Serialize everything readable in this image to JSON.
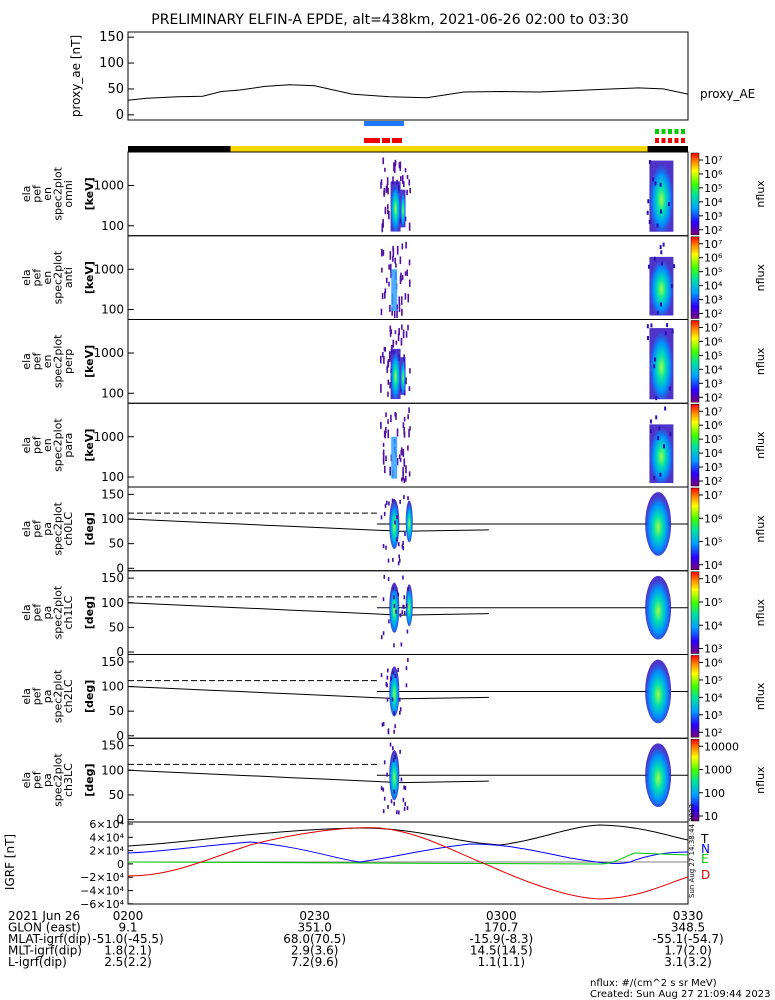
{
  "title": "PRELIMINARY ELFIN-A EPDE, alt=438km, 2021-06-26 02:00 to 03:30",
  "colors": {
    "black": "#000000",
    "bar_black": "#000000",
    "bar_yellow": "#ffd700",
    "blue": "#1e78ff",
    "red": "#ee0000",
    "green": "#00cc00",
    "grf_N": "#0000ff",
    "grf_E": "#00c800",
    "grf_D": "#e00000"
  },
  "chart_data": {
    "type": "line",
    "time_range": [
      "02:00",
      "03:30"
    ],
    "proxy_ae": {
      "ylabel": "proxy_ae [nT]",
      "legend": "proxy_AE",
      "ylim": [
        -10,
        160
      ],
      "yticks": [
        "0",
        "50",
        "100",
        "150"
      ],
      "x": [
        0,
        3,
        8,
        12,
        15,
        18,
        22,
        26,
        30,
        36,
        42,
        48,
        54,
        60,
        66,
        72,
        78,
        82,
        86,
        90
      ],
      "y": [
        28,
        32,
        35,
        36,
        45,
        48,
        55,
        58,
        56,
        40,
        35,
        33,
        44,
        45,
        44,
        47,
        50,
        52,
        50,
        40
      ]
    },
    "status_bar": {
      "segments": [
        {
          "from": 0,
          "to": 16.5,
          "color": "black"
        },
        {
          "from": 16.5,
          "to": 83.5,
          "color": "yellow"
        },
        {
          "from": 83.5,
          "to": 90,
          "color": "black"
        }
      ]
    },
    "spectrograms": [
      {
        "label_lines": [
          "ela",
          "pef",
          "en",
          "spec2plot",
          "omni"
        ],
        "unit": "[keV]",
        "yticks": [
          "100",
          "1000"
        ],
        "cb_title": "nflux",
        "cb_ticks": [
          "10⁷",
          "10⁶",
          "10⁵",
          "10⁴",
          "10³",
          "10²"
        ]
      },
      {
        "label_lines": [
          "ela",
          "pef",
          "en",
          "spec2plot",
          "anti"
        ],
        "unit": "[keV]",
        "yticks": [
          "100",
          "1000"
        ],
        "cb_title": "nflux",
        "cb_ticks": [
          "10⁷",
          "10⁶",
          "10⁵",
          "10⁴",
          "10³",
          "10²"
        ]
      },
      {
        "label_lines": [
          "ela",
          "pef",
          "en",
          "spec2plot",
          "perp"
        ],
        "unit": "[keV]",
        "yticks": [
          "100",
          "1000"
        ],
        "cb_title": "nflux",
        "cb_ticks": [
          "10⁷",
          "10⁶",
          "10⁵",
          "10⁴",
          "10³",
          "10²"
        ]
      },
      {
        "label_lines": [
          "ela",
          "pef",
          "en",
          "spec2plot",
          "para"
        ],
        "unit": "[keV]",
        "yticks": [
          "100",
          "1000"
        ],
        "cb_title": "nflux",
        "cb_ticks": [
          "10⁷",
          "10⁶",
          "10⁵",
          "10⁴",
          "10³",
          "10²"
        ]
      }
    ],
    "pitch_angle": [
      {
        "label_lines": [
          "ela",
          "pef",
          "pa",
          "spec2plot",
          "ch0LC"
        ],
        "unit": "[deg]",
        "yticks": [
          "0",
          "50",
          "100",
          "150"
        ],
        "cb_title": "nflux",
        "cb_ticks": [
          "10⁷",
          "10⁶",
          "10⁵",
          "10⁴"
        ]
      },
      {
        "label_lines": [
          "ela",
          "pef",
          "pa",
          "spec2plot",
          "ch1LC"
        ],
        "unit": "[deg]",
        "yticks": [
          "0",
          "50",
          "100",
          "150"
        ],
        "cb_title": "nflux",
        "cb_ticks": [
          "10⁶",
          "10⁵",
          "10⁴",
          "10³"
        ]
      },
      {
        "label_lines": [
          "ela",
          "pef",
          "pa",
          "spec2plot",
          "ch2LC"
        ],
        "unit": "[deg]",
        "yticks": [
          "0",
          "50",
          "100",
          "150"
        ],
        "cb_title": "nflux",
        "cb_ticks": [
          "10⁶",
          "10⁵",
          "10⁴",
          "10³",
          "10²"
        ]
      },
      {
        "label_lines": [
          "ela",
          "pef",
          "pa",
          "spec2plot",
          "ch3LC"
        ],
        "unit": "[deg]",
        "yticks": [
          "0",
          "50",
          "100",
          "150"
        ],
        "cb_title": "nflux",
        "cb_ticks": [
          "10000",
          "1000",
          "100",
          "10"
        ]
      }
    ],
    "igrf": {
      "ylabel": "IGRF [nT]",
      "yticks": [
        "6×10⁴",
        "4×10⁴",
        "2×10⁴",
        "0",
        "−2×10⁴",
        "−4×10⁴",
        "−6×10⁴"
      ],
      "legend": [
        "T",
        "N",
        "E",
        "D"
      ]
    },
    "orbit_table": {
      "rows": [
        {
          "label": "2021 Jun 26",
          "values": [
            "0200",
            "0230",
            "0300",
            "0330"
          ]
        },
        {
          "label": "GLON (east)",
          "values": [
            "9.1",
            "351.0",
            "170.7",
            "348.5"
          ]
        },
        {
          "label": "MLAT-igrf(dip)",
          "values": [
            "-51.0(-45.5)",
            "68.0(70.5)",
            "-15.9(-8.3)",
            "-55.1(-54.7)"
          ]
        },
        {
          "label": "MLT-igrf(dip)",
          "values": [
            "1.8(2.1)",
            "2.9(3.6)",
            "14.5(14.5)",
            "1.7(2.0)"
          ]
        },
        {
          "label": "L-igrf(dip)",
          "values": [
            "2.5(2.2)",
            "7.2(9.6)",
            "1.1(1.1)",
            "3.1(3.2)"
          ]
        }
      ]
    },
    "footer": [
      "nflux: #/(cm^2 s sr MeV)",
      "Created: Sun Aug 27 21:09:44 2023"
    ],
    "side_stamp": "Sun Aug 27 14:38:44 2023"
  }
}
